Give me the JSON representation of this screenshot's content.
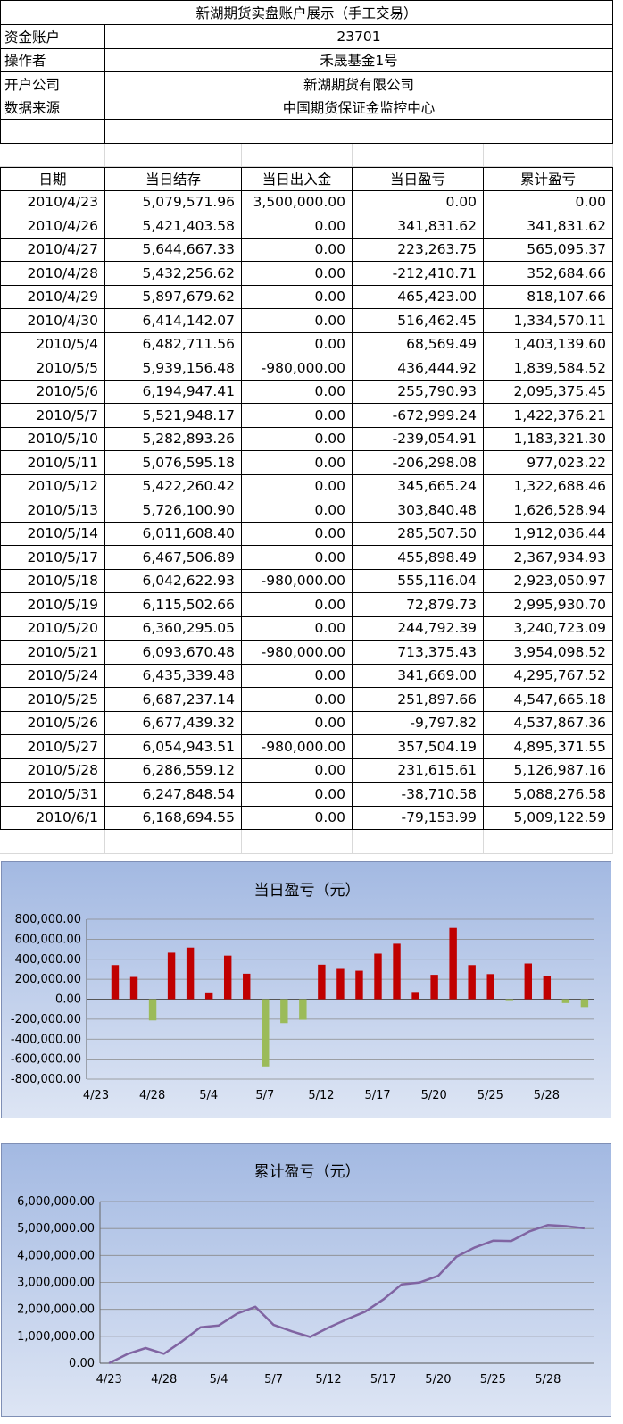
{
  "title": "新湖期货实盘账户展示（手工交易）",
  "info": [
    {
      "label": "资金账户",
      "value": "23701"
    },
    {
      "label": "操作者",
      "value": "禾晟基金1号"
    },
    {
      "label": "开户公司",
      "value": "新湖期货有限公司"
    },
    {
      "label": "数据来源",
      "value": "中国期货保证金监控中心"
    }
  ],
  "table": {
    "headers": [
      "日期",
      "当日结存",
      "当日出入金",
      "当日盈亏",
      "累计盈亏"
    ],
    "rows": [
      [
        "2010/4/23",
        "5,079,571.96",
        "3,500,000.00",
        "0.00",
        "0.00"
      ],
      [
        "2010/4/26",
        "5,421,403.58",
        "0.00",
        "341,831.62",
        "341,831.62"
      ],
      [
        "2010/4/27",
        "5,644,667.33",
        "0.00",
        "223,263.75",
        "565,095.37"
      ],
      [
        "2010/4/28",
        "5,432,256.62",
        "0.00",
        "-212,410.71",
        "352,684.66"
      ],
      [
        "2010/4/29",
        "5,897,679.62",
        "0.00",
        "465,423.00",
        "818,107.66"
      ],
      [
        "2010/4/30",
        "6,414,142.07",
        "0.00",
        "516,462.45",
        "1,334,570.11"
      ],
      [
        "2010/5/4",
        "6,482,711.56",
        "0.00",
        "68,569.49",
        "1,403,139.60"
      ],
      [
        "2010/5/5",
        "5,939,156.48",
        "-980,000.00",
        "436,444.92",
        "1,839,584.52"
      ],
      [
        "2010/5/6",
        "6,194,947.41",
        "0.00",
        "255,790.93",
        "2,095,375.45"
      ],
      [
        "2010/5/7",
        "5,521,948.17",
        "0.00",
        "-672,999.24",
        "1,422,376.21"
      ],
      [
        "2010/5/10",
        "5,282,893.26",
        "0.00",
        "-239,054.91",
        "1,183,321.30"
      ],
      [
        "2010/5/11",
        "5,076,595.18",
        "0.00",
        "-206,298.08",
        "977,023.22"
      ],
      [
        "2010/5/12",
        "5,422,260.42",
        "0.00",
        "345,665.24",
        "1,322,688.46"
      ],
      [
        "2010/5/13",
        "5,726,100.90",
        "0.00",
        "303,840.48",
        "1,626,528.94"
      ],
      [
        "2010/5/14",
        "6,011,608.40",
        "0.00",
        "285,507.50",
        "1,912,036.44"
      ],
      [
        "2010/5/17",
        "6,467,506.89",
        "0.00",
        "455,898.49",
        "2,367,934.93"
      ],
      [
        "2010/5/18",
        "6,042,622.93",
        "-980,000.00",
        "555,116.04",
        "2,923,050.97"
      ],
      [
        "2010/5/19",
        "6,115,502.66",
        "0.00",
        "72,879.73",
        "2,995,930.70"
      ],
      [
        "2010/5/20",
        "6,360,295.05",
        "0.00",
        "244,792.39",
        "3,240,723.09"
      ],
      [
        "2010/5/21",
        "6,093,670.48",
        "-980,000.00",
        "713,375.43",
        "3,954,098.52"
      ],
      [
        "2010/5/24",
        "6,435,339.48",
        "0.00",
        "341,669.00",
        "4,295,767.52"
      ],
      [
        "2010/5/25",
        "6,687,237.14",
        "0.00",
        "251,897.66",
        "4,547,665.18"
      ],
      [
        "2010/5/26",
        "6,677,439.32",
        "0.00",
        "-9,797.82",
        "4,537,867.36"
      ],
      [
        "2010/5/27",
        "6,054,943.51",
        "-980,000.00",
        "357,504.19",
        "4,895,371.55"
      ],
      [
        "2010/5/28",
        "6,286,559.12",
        "0.00",
        "231,615.61",
        "5,126,987.16"
      ],
      [
        "2010/5/31",
        "6,247,848.54",
        "0.00",
        "-38,710.58",
        "5,088,276.58"
      ],
      [
        "2010/6/1",
        "6,168,694.55",
        "0.00",
        "-79,153.99",
        "5,009,122.59"
      ]
    ]
  },
  "chart_data": [
    {
      "type": "bar",
      "title": "当日盈亏（元）",
      "categories": [
        "4/23",
        "4/26",
        "4/27",
        "4/28",
        "4/29",
        "4/30",
        "5/4",
        "5/5",
        "5/6",
        "5/7",
        "5/10",
        "5/11",
        "5/12",
        "5/13",
        "5/14",
        "5/17",
        "5/18",
        "5/19",
        "5/20",
        "5/21",
        "5/24",
        "5/25",
        "5/26",
        "5/27",
        "5/28",
        "5/31",
        "6/1"
      ],
      "values": [
        0,
        341831.62,
        223263.75,
        -212410.71,
        465423.0,
        516462.45,
        68569.49,
        436444.92,
        255790.93,
        -672999.24,
        -239054.91,
        -206298.08,
        345665.24,
        303840.48,
        285507.5,
        455898.49,
        555116.04,
        72879.73,
        244792.39,
        713375.43,
        341669.0,
        251897.66,
        -9797.82,
        357504.19,
        231615.61,
        -38710.58,
        -79153.99
      ],
      "ylim": [
        -800000,
        800000
      ],
      "yticks": [
        "800,000.00",
        "600,000.00",
        "400,000.00",
        "200,000.00",
        "0.00",
        "-200,000.00",
        "-400,000.00",
        "-600,000.00",
        "-800,000.00"
      ],
      "xtick_labels": [
        "4/23",
        "4/28",
        "5/4",
        "5/7",
        "5/12",
        "5/17",
        "5/20",
        "5/25",
        "5/28"
      ],
      "colors": {
        "positive": "#c00000",
        "negative": "#9bbb59"
      },
      "grid": true
    },
    {
      "type": "line",
      "title": "累计盈亏（元）",
      "categories": [
        "4/23",
        "4/26",
        "4/27",
        "4/28",
        "4/29",
        "4/30",
        "5/4",
        "5/5",
        "5/6",
        "5/7",
        "5/10",
        "5/11",
        "5/12",
        "5/13",
        "5/14",
        "5/17",
        "5/18",
        "5/19",
        "5/20",
        "5/21",
        "5/24",
        "5/25",
        "5/26",
        "5/27",
        "5/28",
        "5/31",
        "6/1"
      ],
      "values": [
        0,
        341831.62,
        565095.37,
        352684.66,
        818107.66,
        1334570.11,
        1403139.6,
        1839584.52,
        2095375.45,
        1422376.21,
        1183321.3,
        977023.22,
        1322688.46,
        1626528.94,
        1912036.44,
        2367934.93,
        2923050.97,
        2995930.7,
        3240723.09,
        3954098.52,
        4295767.52,
        4547665.18,
        4537867.36,
        4895371.55,
        5126987.16,
        5088276.58,
        5009122.59
      ],
      "ylim": [
        0,
        6000000
      ],
      "yticks": [
        "6,000,000.00",
        "5,000,000.00",
        "4,000,000.00",
        "3,000,000.00",
        "2,000,000.00",
        "1,000,000.00",
        "0.00"
      ],
      "xtick_labels": [
        "4/23",
        "4/28",
        "5/4",
        "5/7",
        "5/12",
        "5/17",
        "5/20",
        "5/25",
        "5/28"
      ],
      "colors": {
        "line": "#8064a2"
      },
      "grid": true
    }
  ]
}
